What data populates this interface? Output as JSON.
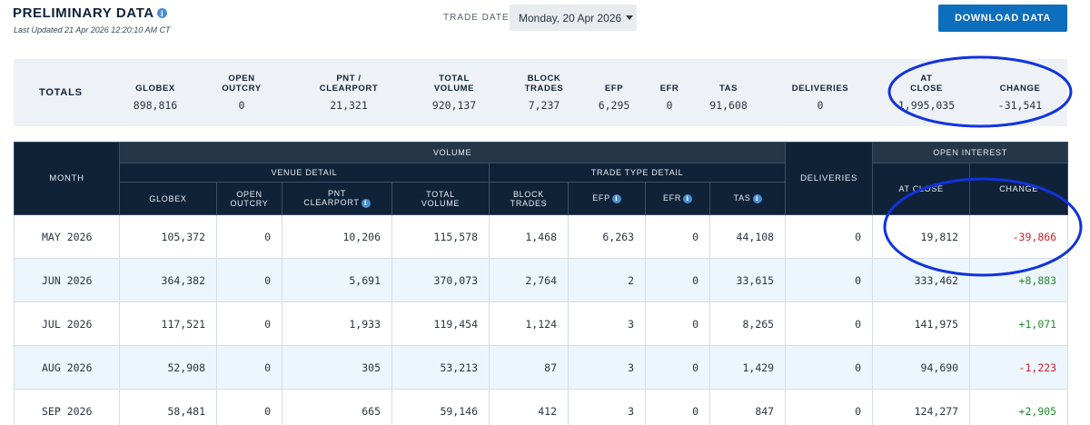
{
  "header": {
    "title": "PRELIMINARY DATA",
    "last_updated": "Last Updated 21 Apr 2026 12:20:10 AM CT",
    "trade_date_label": "TRADE DATE",
    "trade_date_value": "Monday, 20 Apr 2026",
    "download_label": "DOWNLOAD DATA"
  },
  "totals": {
    "label": "TOTALS",
    "columns": [
      {
        "h1": "GLOBEX",
        "h2": "",
        "value": "898,816"
      },
      {
        "h1": "OPEN",
        "h2": "OUTCRY",
        "value": "0"
      },
      {
        "h1": "PNT /",
        "h2": "CLEARPORT",
        "value": "21,321"
      },
      {
        "h1": "TOTAL",
        "h2": "VOLUME",
        "value": "920,137"
      },
      {
        "h1": "BLOCK",
        "h2": "TRADES",
        "value": "7,237"
      },
      {
        "h1": "EFP",
        "h2": "",
        "value": "6,295"
      },
      {
        "h1": "EFR",
        "h2": "",
        "value": "0"
      },
      {
        "h1": "TAS",
        "h2": "",
        "value": "91,608"
      },
      {
        "h1": "DELIVERIES",
        "h2": "",
        "value": "0"
      },
      {
        "h1": "AT",
        "h2": "CLOSE",
        "value": "1,995,035"
      },
      {
        "h1": "CHANGE",
        "h2": "",
        "value": "-31,541"
      }
    ]
  },
  "table": {
    "headers": {
      "month": "MONTH",
      "volume": "VOLUME",
      "venue_detail": "VENUE DETAIL",
      "trade_type_detail": "TRADE TYPE DETAIL",
      "deliveries": "DELIVERIES",
      "open_interest": "OPEN INTEREST",
      "globex": "GLOBEX",
      "open1": "OPEN",
      "open2": "OUTCRY",
      "pnt1": "PNT",
      "pnt2": "CLEARPORT",
      "total1": "TOTAL",
      "total2": "VOLUME",
      "block1": "BLOCK",
      "block2": "TRADES",
      "efp": "EFP",
      "efr": "EFR",
      "tas": "TAS",
      "at_close": "AT CLOSE",
      "change": "CHANGE"
    },
    "rows": [
      {
        "month": "MAY 2026",
        "globex": "105,372",
        "open_outcry": "0",
        "pnt": "10,206",
        "total": "115,578",
        "block": "1,468",
        "efp": "6,263",
        "efr": "0",
        "tas": "44,108",
        "deliveries": "0",
        "at_close": "19,812",
        "change": "-39,866"
      },
      {
        "month": "JUN 2026",
        "globex": "364,382",
        "open_outcry": "0",
        "pnt": "5,691",
        "total": "370,073",
        "block": "2,764",
        "efp": "2",
        "efr": "0",
        "tas": "33,615",
        "deliveries": "0",
        "at_close": "333,462",
        "change": "+8,883"
      },
      {
        "month": "JUL 2026",
        "globex": "117,521",
        "open_outcry": "0",
        "pnt": "1,933",
        "total": "119,454",
        "block": "1,124",
        "efp": "3",
        "efr": "0",
        "tas": "8,265",
        "deliveries": "0",
        "at_close": "141,975",
        "change": "+1,071"
      },
      {
        "month": "AUG 2026",
        "globex": "52,908",
        "open_outcry": "0",
        "pnt": "305",
        "total": "53,213",
        "block": "87",
        "efp": "3",
        "efr": "0",
        "tas": "1,429",
        "deliveries": "0",
        "at_close": "94,690",
        "change": "-1,223"
      },
      {
        "month": "SEP 2026",
        "globex": "58,481",
        "open_outcry": "0",
        "pnt": "665",
        "total": "59,146",
        "block": "412",
        "efp": "3",
        "efr": "0",
        "tas": "847",
        "deliveries": "0",
        "at_close": "124,277",
        "change": "+2,905"
      }
    ]
  },
  "colors": {
    "header_navy": "#0f2238",
    "accent_blue": "#0c6ebd",
    "negative": "#d21f2b",
    "positive": "#238b30",
    "annotation": "#1133dd"
  }
}
